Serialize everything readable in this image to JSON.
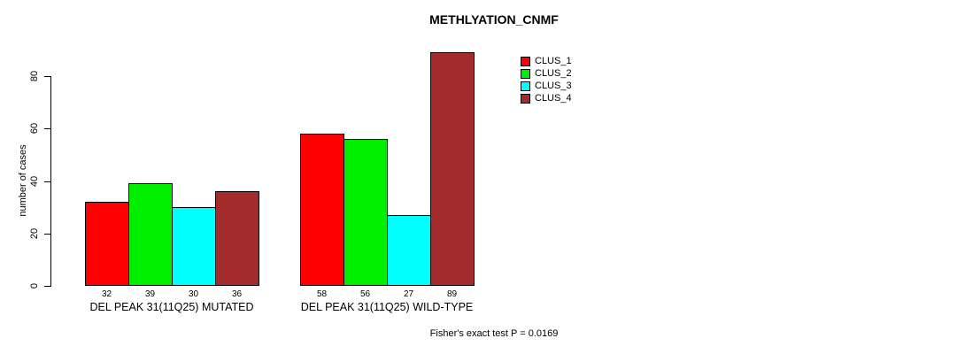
{
  "chart_data": {
    "type": "bar",
    "title": "METHLYATION_CNMF",
    "ylabel": "number of cases",
    "yticks": [
      0,
      20,
      40,
      60,
      80
    ],
    "ylim": [
      0,
      89
    ],
    "grid": false,
    "legend_position": "top-right",
    "categories": [
      "DEL PEAK 31(11Q25) MUTATED",
      "DEL PEAK 31(11Q25) WILD-TYPE"
    ],
    "series": [
      {
        "name": "CLUS_1",
        "color": "#ff0000",
        "values": [
          32,
          58
        ]
      },
      {
        "name": "CLUS_2",
        "color": "#00ee00",
        "values": [
          39,
          56
        ]
      },
      {
        "name": "CLUS_3",
        "color": "#00ffff",
        "values": [
          30,
          27
        ]
      },
      {
        "name": "CLUS_4",
        "color": "#a32b2b",
        "values": [
          36,
          89
        ]
      }
    ],
    "bar_value_labels": [
      [
        "32",
        "39",
        "30",
        "36"
      ],
      [
        "58",
        "56",
        "27",
        "89"
      ]
    ],
    "footnote": "Fisher's exact test P = 0.0169"
  }
}
